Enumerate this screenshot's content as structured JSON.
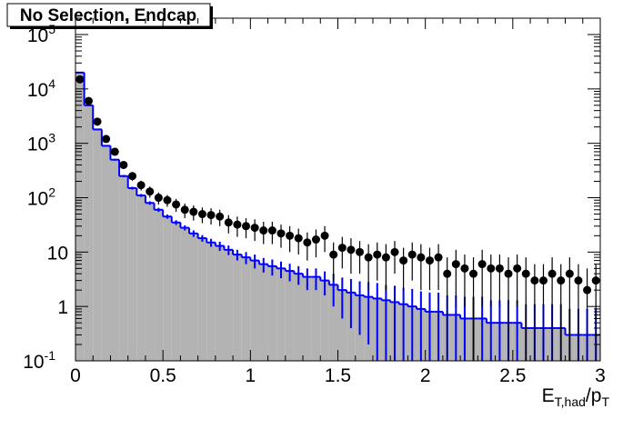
{
  "chart_data": {
    "type": "histogram",
    "title": "No Selection, Endcap",
    "xlabel_parts": [
      "E",
      "T,had",
      "/p",
      "T"
    ],
    "log_y": true,
    "xlim": [
      0,
      3
    ],
    "ylim": [
      0.1,
      200000
    ],
    "xticks": [
      0,
      0.5,
      1,
      1.5,
      2,
      2.5,
      3
    ],
    "yticks": [
      {
        "value": 0.1,
        "label": "10",
        "exponent": "-1"
      },
      1,
      10,
      {
        "value": 100,
        "label": "10",
        "exponent": "2"
      },
      {
        "value": 1000,
        "label": "10",
        "exponent": "3"
      },
      {
        "value": 10000,
        "label": "10",
        "exponent": "4"
      },
      {
        "value": 100000,
        "label": "10",
        "exponent": "5"
      }
    ],
    "bins": [
      0,
      0.05,
      0.1,
      0.15,
      0.2,
      0.25,
      0.3,
      0.35,
      0.4,
      0.45,
      0.5,
      0.55,
      0.6,
      0.65,
      0.7,
      0.75,
      0.8,
      0.85,
      0.9,
      0.95,
      1,
      1.05,
      1.1,
      1.15,
      1.2,
      1.25,
      1.3,
      1.35,
      1.4,
      1.45,
      1.5,
      1.55,
      1.6,
      1.65,
      1.7,
      1.75,
      1.8,
      1.85,
      1.9,
      1.95,
      2,
      2.05,
      2.1,
      2.15,
      2.2,
      2.25,
      2.3,
      2.35,
      2.4,
      2.45,
      2.5,
      2.55,
      2.6,
      2.65,
      2.7,
      2.75,
      2.8,
      2.85,
      2.9,
      2.95,
      3
    ],
    "series": [
      {
        "style": "filled",
        "fill_color": "#b3b3b3",
        "color": "#0000ff",
        "values": [
          20000,
          5000,
          1800,
          900,
          500,
          250,
          150,
          110,
          80,
          60,
          45,
          35,
          28,
          22,
          18,
          15,
          13,
          11,
          9,
          8,
          7,
          6,
          5.5,
          5,
          4.5,
          4,
          3.5,
          3.5,
          3,
          2.5,
          2,
          1.8,
          1.6,
          1.5,
          1.4,
          1.3,
          1.2,
          1.1,
          1,
          0.9,
          0.8,
          0.8,
          0.7,
          0.7,
          0.6,
          0.6,
          0.6,
          0.5,
          0.5,
          0.5,
          0.5,
          0.4,
          0.4,
          0.4,
          0.4,
          0.4,
          0.3,
          0.3,
          0.3,
          0.3
        ],
        "errors": [
          300,
          100,
          50,
          30,
          20,
          12,
          9,
          7,
          6,
          5,
          4,
          3.5,
          3,
          3,
          2.5,
          2.5,
          2.5,
          2.2,
          2,
          2,
          2,
          1.8,
          1.8,
          1.7,
          1.6,
          1.5,
          1.5,
          1.5,
          1.4,
          1.5,
          1.4,
          1.4,
          1.3,
          1.3,
          1.3,
          1.2,
          1.2,
          1.1,
          1.1,
          1,
          1,
          1,
          0.9,
          0.9,
          0.9,
          0.9,
          0.9,
          0.8,
          0.8,
          0.8,
          0.8,
          0.7,
          0.7,
          0.7,
          0.7,
          0.7,
          0.6,
          0.6,
          0.6,
          0.6
        ]
      },
      {
        "style": "points",
        "color": "#000000",
        "values": [
          15000,
          6000,
          2500,
          1200,
          700,
          400,
          250,
          170,
          130,
          100,
          90,
          75,
          60,
          55,
          50,
          48,
          45,
          35,
          32,
          30,
          28,
          25,
          25,
          22,
          20,
          18,
          15,
          17,
          20,
          9,
          12,
          11,
          10,
          8,
          9,
          8,
          10,
          7,
          9,
          8,
          7,
          8,
          4,
          6,
          5,
          4,
          6,
          5,
          5,
          4,
          5,
          4,
          3,
          3,
          4,
          3,
          4,
          3,
          2,
          3
        ],
        "errors": [
          500,
          300,
          200,
          120,
          80,
          60,
          45,
          35,
          30,
          25,
          22,
          20,
          18,
          17,
          16,
          16,
          15,
          13,
          13,
          12,
          12,
          11,
          11,
          10,
          10,
          9,
          8,
          9,
          10,
          6,
          7,
          7,
          6,
          6,
          6,
          6,
          6,
          5,
          6,
          6,
          5,
          6,
          4,
          5,
          4,
          4,
          5,
          4,
          4,
          4,
          4,
          4,
          3,
          3,
          4,
          3,
          4,
          3,
          3,
          3
        ]
      }
    ]
  }
}
